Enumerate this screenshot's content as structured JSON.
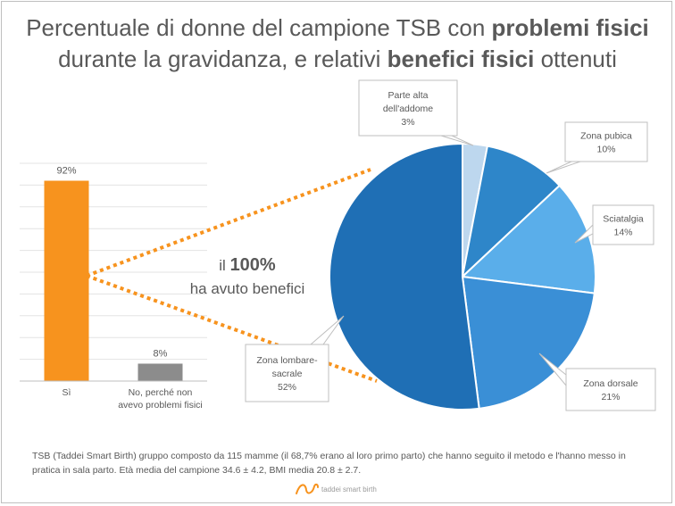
{
  "title": {
    "line1_plain": "Percentuale di donne del campione TSB con ",
    "line1_bold": "problemi fisici",
    "line2_plain1": "durante la gravidanza, e relativi ",
    "line2_bold": "benefici fisici",
    "line2_plain2": " ottenuti"
  },
  "callout": {
    "prefix": "il ",
    "value": "100%",
    "suffix": "ha avuto benefici"
  },
  "footnote": "TSB (Taddei Smart Birth) gruppo composto da 115 mamme (il 68,7% erano al loro primo parto) che hanno seguito il metodo e l'hanno messo in pratica in sala parto. Età media del campione 34.6 ± 4.2, BMI media 20.8 ± 2.7.",
  "logo": {
    "text": "taddei smart birth",
    "icon": "swirl-logo-icon"
  },
  "colors": {
    "orange": "#f7931e",
    "gray": "#8c8c8c",
    "dotted": "#f7931e"
  },
  "chart_data": [
    {
      "type": "bar",
      "categories": [
        "Sì",
        "No, perché non avevo problemi fisici"
      ],
      "category_lines": [
        [
          "Sì"
        ],
        [
          "No, perché non",
          "avevo problemi fisici"
        ]
      ],
      "values": [
        92,
        8
      ],
      "value_labels": [
        "92%",
        "8%"
      ],
      "colors": [
        "#f7931e",
        "#8c8c8c"
      ],
      "ylim": [
        0,
        100
      ],
      "grid": true
    },
    {
      "type": "pie",
      "labels": [
        "Parte alta dell'addome",
        "Zona pubica",
        "Sciatalgia",
        "Zona dorsale",
        "Zona lombare-sacrale"
      ],
      "label_lines": [
        [
          "Parte alta",
          "dell'addome"
        ],
        [
          "Zona pubica"
        ],
        [
          "Sciatalgia"
        ],
        [
          "Zona dorsale"
        ],
        [
          "Zona lombare-",
          "sacrale"
        ]
      ],
      "values": [
        3,
        10,
        14,
        21,
        52
      ],
      "value_labels": [
        "3%",
        "10%",
        "14%",
        "21%",
        "52%"
      ],
      "colors": [
        "#bdd7ee",
        "#2e86c9",
        "#5aaeea",
        "#3a8fd6",
        "#1f6fb5"
      ]
    }
  ]
}
